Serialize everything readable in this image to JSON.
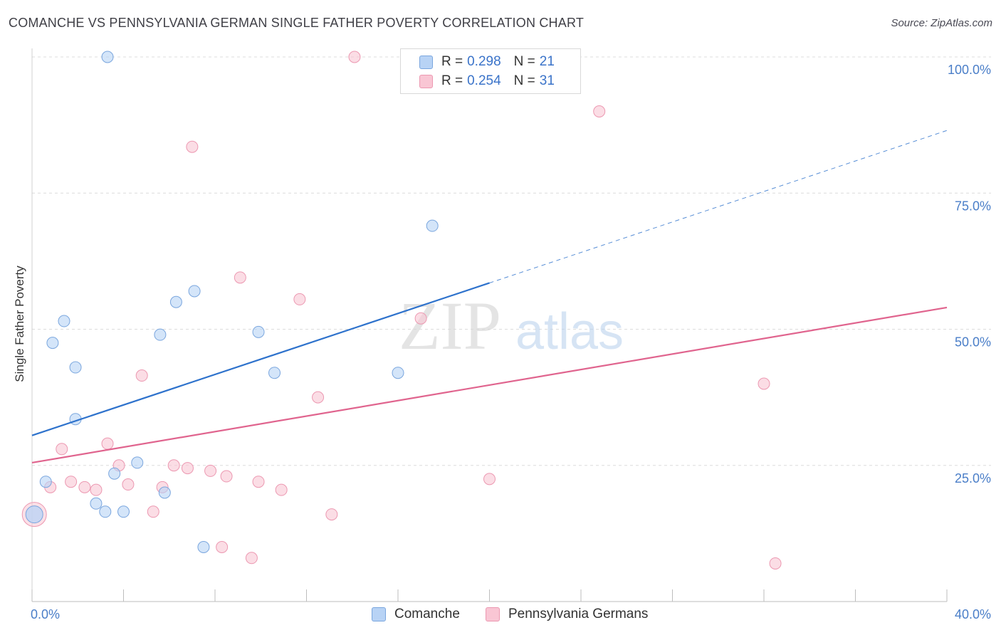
{
  "header": {
    "title": "COMANCHE VS PENNSYLVANIA GERMAN SINGLE FATHER POVERTY CORRELATION CHART",
    "source": "Source: ZipAtlas.com"
  },
  "watermark": {
    "zip": "ZIP",
    "atlas": "atlas"
  },
  "colors": {
    "comanche_fill": "#b8d3f5",
    "comanche_stroke": "#7aa6de",
    "comanche_line": "#2e72cc",
    "pa_fill": "#f9c6d4",
    "pa_stroke": "#ec98b1",
    "pa_line": "#e0648e",
    "tick_label": "#4a7ec8",
    "grid": "#dcdcdc"
  },
  "legend": {
    "comanche": {
      "r_label": "R =",
      "r_value": "0.298",
      "n_label": "N =",
      "n_value": "21"
    },
    "pa": {
      "r_label": "R =",
      "r_value": "0.254",
      "n_label": "N =",
      "n_value": "31"
    }
  },
  "bottom_legend": {
    "comanche": "Comanche",
    "pa": "Pennsylvania Germans"
  },
  "chart_data": {
    "type": "scatter",
    "title": "COMANCHE VS PENNSYLVANIA GERMAN SINGLE FATHER POVERTY CORRELATION CHART",
    "xlabel": "",
    "ylabel": "Single Father Poverty",
    "xlim": [
      0,
      40
    ],
    "ylim": [
      0,
      100
    ],
    "x_tick_labels": [
      "0.0%",
      "40.0%"
    ],
    "y_ticks": [
      25,
      50,
      75,
      100
    ],
    "y_tick_labels": [
      "25.0%",
      "50.0%",
      "75.0%",
      "100.0%"
    ],
    "grid": true,
    "legend_position": "top-center",
    "series": [
      {
        "name": "Comanche",
        "r": 0.298,
        "n": 21,
        "points": [
          {
            "x": 0.1,
            "y": 16.0,
            "big": true
          },
          {
            "x": 0.6,
            "y": 22.0
          },
          {
            "x": 0.9,
            "y": 47.5
          },
          {
            "x": 1.4,
            "y": 51.5
          },
          {
            "x": 1.9,
            "y": 43.0
          },
          {
            "x": 1.9,
            "y": 33.5
          },
          {
            "x": 2.8,
            "y": 18.0
          },
          {
            "x": 3.2,
            "y": 16.5
          },
          {
            "x": 3.6,
            "y": 23.5
          },
          {
            "x": 4.0,
            "y": 16.5
          },
          {
            "x": 4.6,
            "y": 25.5
          },
          {
            "x": 5.6,
            "y": 49.0
          },
          {
            "x": 5.8,
            "y": 20.0
          },
          {
            "x": 6.3,
            "y": 55.0
          },
          {
            "x": 7.1,
            "y": 57.0
          },
          {
            "x": 7.5,
            "y": 10.0
          },
          {
            "x": 9.9,
            "y": 49.5
          },
          {
            "x": 10.6,
            "y": 42.0
          },
          {
            "x": 16.0,
            "y": 42.0
          },
          {
            "x": 17.5,
            "y": 69.0
          },
          {
            "x": 3.3,
            "y": 100.0
          }
        ],
        "trend": {
          "x0": 0,
          "y0": 30.5,
          "x1": 20,
          "y1": 58.5,
          "dash_to_x": 40,
          "dash_to_y": 86.5
        }
      },
      {
        "name": "Pennsylvania Germans",
        "r": 0.254,
        "n": 31,
        "points": [
          {
            "x": 0.1,
            "y": 16.0,
            "big": true
          },
          {
            "x": 0.8,
            "y": 21.0
          },
          {
            "x": 1.3,
            "y": 28.0
          },
          {
            "x": 1.7,
            "y": 22.0
          },
          {
            "x": 2.3,
            "y": 21.0
          },
          {
            "x": 2.8,
            "y": 20.5
          },
          {
            "x": 3.3,
            "y": 29.0
          },
          {
            "x": 3.8,
            "y": 25.0
          },
          {
            "x": 4.2,
            "y": 21.5
          },
          {
            "x": 4.8,
            "y": 41.5
          },
          {
            "x": 5.3,
            "y": 16.5
          },
          {
            "x": 5.7,
            "y": 21.0
          },
          {
            "x": 6.2,
            "y": 25.0
          },
          {
            "x": 6.8,
            "y": 24.5
          },
          {
            "x": 7.0,
            "y": 83.5
          },
          {
            "x": 7.8,
            "y": 24.0
          },
          {
            "x": 8.3,
            "y": 10.0
          },
          {
            "x": 8.5,
            "y": 23.0
          },
          {
            "x": 9.1,
            "y": 59.5
          },
          {
            "x": 9.6,
            "y": 8.0
          },
          {
            "x": 9.9,
            "y": 22.0
          },
          {
            "x": 10.9,
            "y": 20.5
          },
          {
            "x": 11.7,
            "y": 55.5
          },
          {
            "x": 12.5,
            "y": 37.5
          },
          {
            "x": 13.1,
            "y": 16.0
          },
          {
            "x": 14.1,
            "y": 100.0
          },
          {
            "x": 17.0,
            "y": 52.0
          },
          {
            "x": 20.0,
            "y": 22.5
          },
          {
            "x": 24.8,
            "y": 90.0
          },
          {
            "x": 32.0,
            "y": 40.0
          },
          {
            "x": 32.5,
            "y": 7.0
          }
        ],
        "trend": {
          "x0": 0,
          "y0": 25.5,
          "x1": 40,
          "y1": 54.0
        }
      }
    ]
  }
}
